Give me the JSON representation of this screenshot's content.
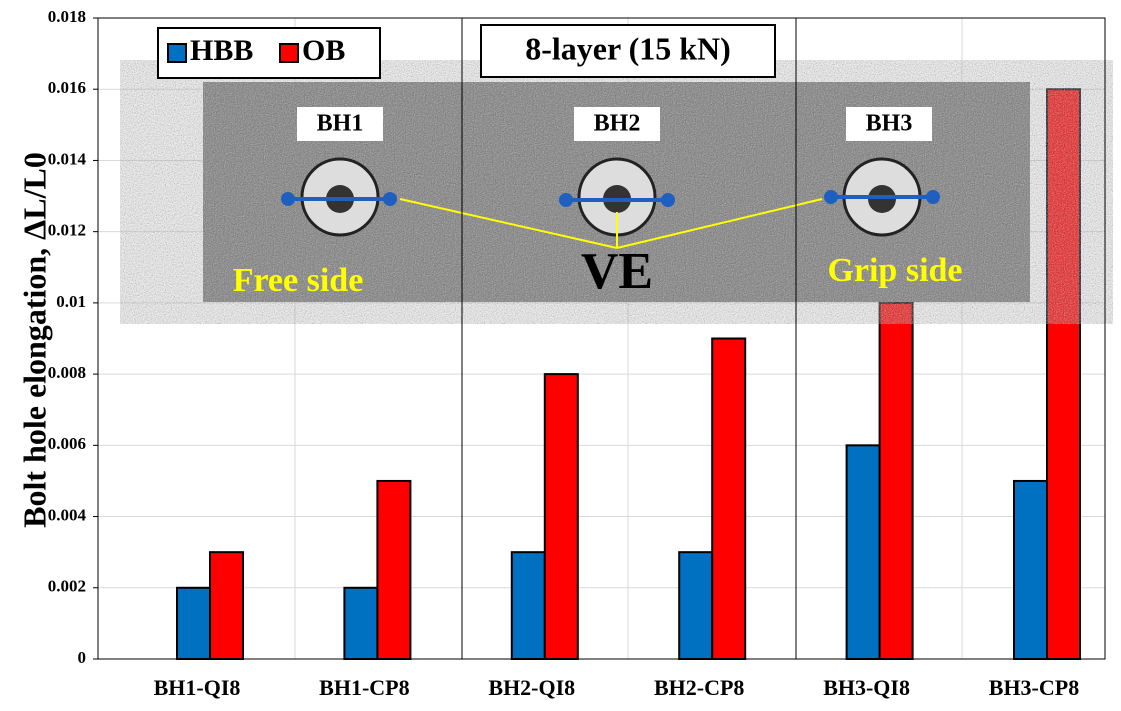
{
  "chart_data": {
    "type": "bar",
    "title": "8-layer (15 kN)",
    "y_label": "Bolt hole elongation, ΔL/L0",
    "categories": [
      "BH1-QI8",
      "BH1-CP8",
      "BH2-QI8",
      "BH2-CP8",
      "BH3-QI8",
      "BH3-CP8"
    ],
    "series": [
      {
        "name": "HBB",
        "color": "#0070c0",
        "values": [
          0.002,
          0.002,
          0.003,
          0.003,
          0.006,
          0.005
        ]
      },
      {
        "name": "OB",
        "color": "#ff0000",
        "values": [
          0.003,
          0.005,
          0.008,
          0.009,
          0.01,
          0.016
        ]
      }
    ],
    "ylim": [
      0,
      0.018
    ],
    "yticks": [
      0,
      0.002,
      0.004,
      0.006,
      0.008,
      0.01,
      0.012,
      0.014,
      0.016,
      0.018
    ],
    "grid": true,
    "legend": "top-left",
    "annotations": [
      "BH1",
      "BH2",
      "BH3",
      "Free side",
      "VE",
      "Grip side"
    ]
  }
}
